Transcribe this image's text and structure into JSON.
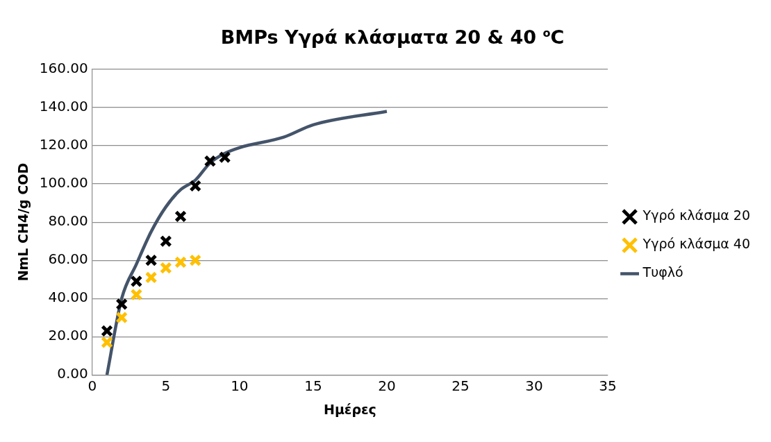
{
  "chart_data": {
    "type": "scatter",
    "title": "BMPs  Υγρά κλάσματα 20 & 40 $^{o}$C",
    "xlabel": "Ημέρες",
    "ylabel": "NmL CH4/g COD",
    "series": [
      {
        "name": "Υγρό κλάσμα 20",
        "color": "#000000",
        "marker": "cross",
        "x": [
          1,
          2,
          3,
          4,
          5,
          6,
          7,
          8,
          9
        ],
        "values": [
          23,
          37,
          49,
          60,
          70,
          83,
          99,
          112,
          114
        ]
      },
      {
        "name": "Υγρό κλάσμα 40",
        "color": "#ffc000",
        "marker": "cross",
        "x": [
          1,
          2,
          3,
          4,
          5,
          6,
          7
        ],
        "values": [
          17,
          30,
          42,
          51,
          56,
          59,
          60
        ]
      },
      {
        "name": "Τυφλό",
        "type": "line",
        "color": "#44546a",
        "marker": "none",
        "x": [
          1,
          2,
          3,
          4,
          5,
          6,
          7,
          8,
          9,
          10,
          13,
          15,
          20
        ],
        "values": [
          0,
          40,
          58,
          75,
          88,
          97,
          102,
          111,
          116,
          119,
          124.5,
          131,
          138
        ]
      }
    ],
    "xlim": [
      0,
      35
    ],
    "xticks": [
      0,
      5,
      10,
      15,
      20,
      25,
      30,
      35
    ],
    "ylim": [
      0,
      160
    ],
    "yticks": [
      {
        "value": 0,
        "label": "0.00"
      },
      {
        "value": 20,
        "label": "20.00"
      },
      {
        "value": 40,
        "label": "40.00"
      },
      {
        "value": 60,
        "label": "60.00"
      },
      {
        "value": 80,
        "label": "80.00"
      },
      {
        "value": 100,
        "label": "100.00"
      },
      {
        "value": 120,
        "label": "120.00"
      },
      {
        "value": 140,
        "label": "140.00"
      },
      {
        "value": 160,
        "label": "160.00"
      }
    ],
    "grid": "y",
    "legend": "right"
  }
}
